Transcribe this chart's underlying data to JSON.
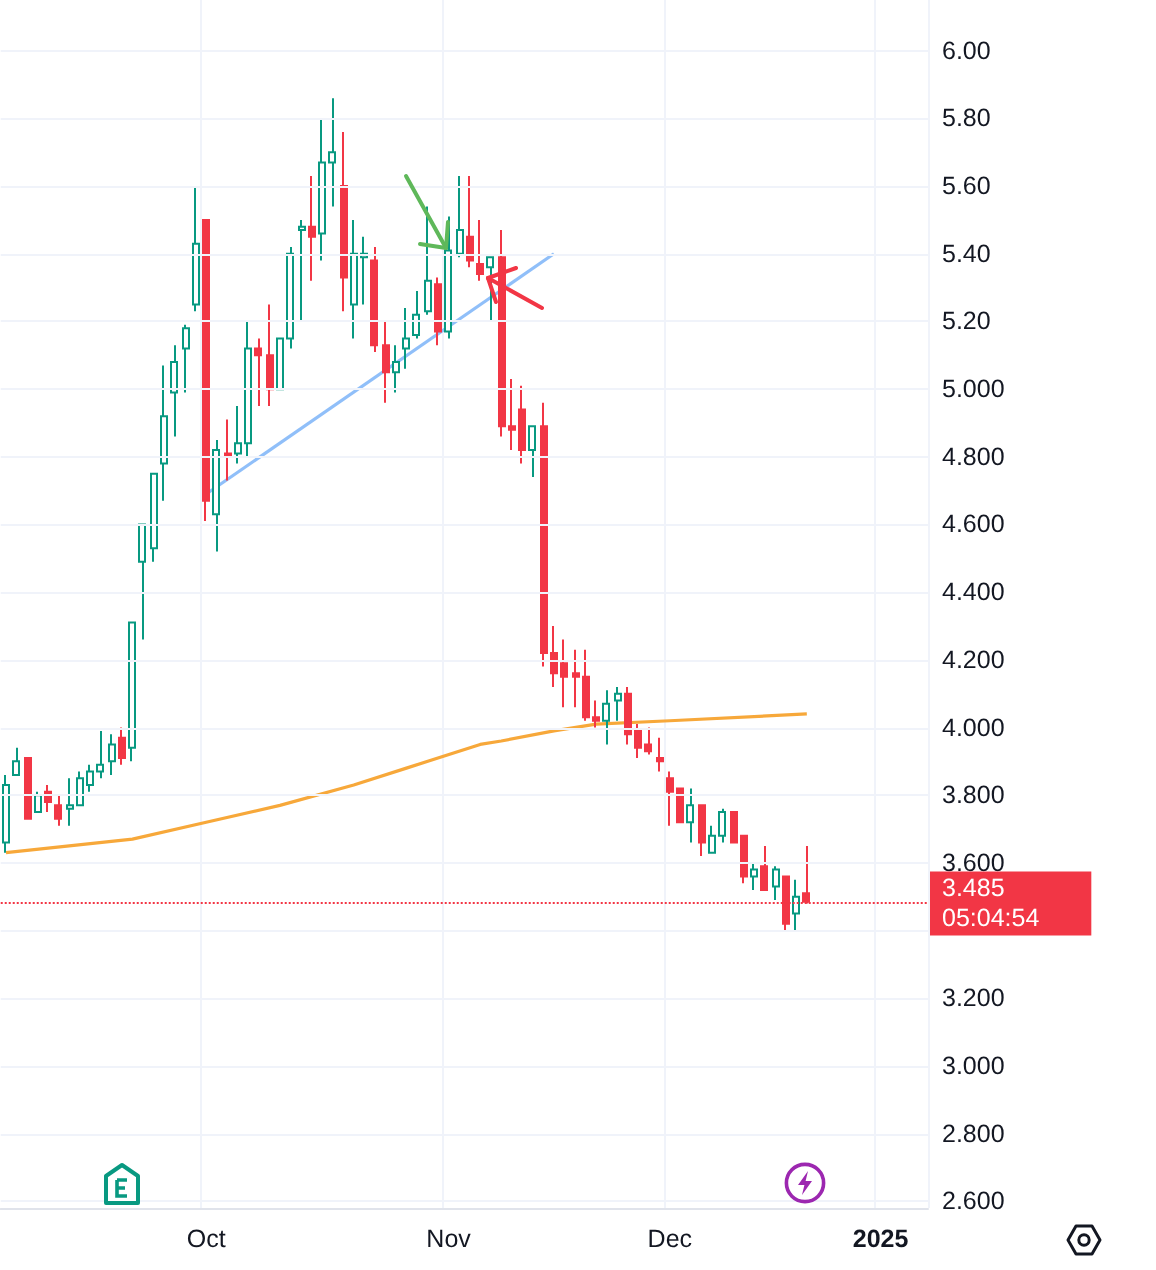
{
  "chart_data": {
    "type": "candlestick",
    "categories": [
      null,
      null,
      null,
      null,
      null,
      null,
      null,
      null,
      null,
      null,
      null,
      null,
      null,
      null,
      null,
      null,
      null,
      null,
      null,
      "Oct",
      null,
      null,
      null,
      null,
      null,
      null,
      null,
      null,
      null,
      null,
      null,
      null,
      null,
      null,
      null,
      null,
      null,
      null,
      null,
      null,
      null,
      null,
      "Nov",
      null,
      null,
      null,
      null,
      null,
      null,
      null,
      null,
      null,
      null,
      null,
      null,
      null,
      null,
      null,
      null,
      null,
      null,
      null,
      null,
      "Dec",
      null,
      null,
      null,
      null,
      null,
      null,
      null,
      null,
      null,
      null,
      null,
      null,
      null,
      null,
      null,
      null,
      null,
      null,
      null,
      "2025",
      null,
      null,
      null,
      null
    ],
    "ohlc": [
      [
        3.66,
        3.86,
        3.63,
        3.83
      ],
      [
        3.86,
        3.94,
        3.86,
        3.9
      ],
      [
        3.91,
        3.91,
        3.73,
        3.73
      ],
      [
        3.75,
        3.81,
        3.75,
        3.8
      ],
      [
        3.81,
        3.83,
        3.75,
        3.78
      ],
      [
        3.77,
        3.8,
        3.71,
        3.73
      ],
      [
        3.76,
        3.85,
        3.71,
        3.77
      ],
      [
        3.77,
        3.87,
        3.77,
        3.85
      ],
      [
        3.83,
        3.89,
        3.81,
        3.87
      ],
      [
        3.87,
        3.99,
        3.85,
        3.89
      ],
      [
        3.9,
        3.98,
        3.86,
        3.95
      ],
      [
        3.97,
        4.0,
        3.89,
        3.91
      ],
      [
        3.94,
        4.31,
        3.9,
        4.31
      ],
      [
        4.49,
        4.6,
        4.26,
        4.6
      ],
      [
        4.53,
        4.75,
        4.49,
        4.75
      ],
      [
        4.78,
        5.07,
        4.67,
        4.92
      ],
      [
        4.99,
        5.13,
        4.86,
        5.08
      ],
      [
        5.12,
        5.19,
        4.99,
        5.18
      ],
      [
        5.25,
        5.6,
        5.23,
        5.43
      ],
      [
        5.5,
        5.5,
        4.61,
        4.67
      ],
      [
        4.63,
        4.85,
        4.52,
        4.82
      ],
      [
        4.81,
        4.91,
        4.73,
        4.8
      ],
      [
        4.81,
        4.95,
        4.78,
        4.84
      ],
      [
        4.84,
        5.2,
        4.8,
        5.12
      ],
      [
        5.12,
        5.15,
        4.95,
        5.1
      ],
      [
        5.1,
        5.25,
        4.95,
        5.0
      ],
      [
        5.0,
        5.15,
        5.0,
        5.15
      ],
      [
        5.15,
        5.42,
        5.12,
        5.4
      ],
      [
        5.47,
        5.5,
        5.2,
        5.48
      ],
      [
        5.48,
        5.63,
        5.32,
        5.45
      ],
      [
        5.46,
        5.8,
        5.38,
        5.67
      ],
      [
        5.67,
        5.86,
        5.54,
        5.7
      ],
      [
        5.6,
        5.76,
        5.23,
        5.33
      ],
      [
        5.25,
        5.5,
        5.15,
        5.4
      ],
      [
        5.39,
        5.45,
        5.25,
        5.4
      ],
      [
        5.38,
        5.42,
        5.11,
        5.13
      ],
      [
        5.13,
        5.2,
        4.96,
        5.05
      ],
      [
        5.05,
        5.13,
        4.99,
        5.08
      ],
      [
        5.12,
        5.24,
        5.06,
        5.15
      ],
      [
        5.16,
        5.29,
        5.15,
        5.22
      ],
      [
        5.23,
        5.54,
        5.22,
        5.32
      ],
      [
        5.31,
        5.33,
        5.13,
        5.17
      ],
      [
        5.17,
        5.51,
        5.15,
        5.41
      ],
      [
        5.4,
        5.63,
        5.39,
        5.47
      ],
      [
        5.45,
        5.63,
        5.36,
        5.38
      ],
      [
        5.37,
        5.5,
        5.32,
        5.34
      ],
      [
        5.36,
        5.39,
        5.2,
        5.39
      ],
      [
        5.39,
        5.47,
        4.86,
        4.89
      ],
      [
        4.89,
        5.03,
        4.82,
        4.88
      ],
      [
        4.94,
        5.01,
        4.78,
        4.82
      ],
      [
        4.82,
        4.89,
        4.74,
        4.89
      ],
      [
        4.89,
        4.96,
        4.18,
        4.22
      ],
      [
        4.22,
        4.3,
        4.12,
        4.16
      ],
      [
        4.19,
        4.26,
        4.06,
        4.15
      ],
      [
        4.16,
        4.23,
        4.06,
        4.15
      ],
      [
        4.15,
        4.23,
        4.02,
        4.03
      ],
      [
        4.03,
        4.08,
        4.0,
        4.02
      ],
      [
        4.02,
        4.11,
        3.95,
        4.07
      ],
      [
        4.08,
        4.12,
        4.02,
        4.1
      ],
      [
        4.1,
        4.12,
        3.95,
        3.98
      ],
      [
        3.99,
        4.01,
        3.91,
        3.94
      ],
      [
        3.95,
        4.0,
        3.92,
        3.93
      ],
      [
        3.91,
        3.97,
        3.87,
        3.9
      ],
      [
        3.85,
        3.87,
        3.71,
        3.81
      ],
      [
        3.82,
        3.82,
        3.72,
        3.72
      ],
      [
        3.72,
        3.82,
        3.66,
        3.77
      ],
      [
        3.77,
        3.77,
        3.62,
        3.66
      ],
      [
        3.63,
        3.71,
        3.63,
        3.68
      ],
      [
        3.68,
        3.76,
        3.66,
        3.75
      ],
      [
        3.75,
        3.75,
        3.66,
        3.66
      ],
      [
        3.68,
        3.68,
        3.54,
        3.56
      ],
      [
        3.56,
        3.6,
        3.52,
        3.58
      ],
      [
        3.59,
        3.65,
        3.52,
        3.52
      ],
      [
        3.53,
        3.59,
        3.49,
        3.58
      ],
      [
        3.56,
        3.56,
        3.4,
        3.42
      ],
      [
        3.45,
        3.55,
        3.4,
        3.5
      ],
      [
        3.51,
        3.65,
        3.48,
        3.485
      ],
      null,
      null,
      null,
      null,
      null,
      null,
      null,
      null,
      null,
      null,
      null
    ],
    "series": [
      {
        "type": "line",
        "color": "#f7a83a",
        "values": [
          3.63,
          null,
          null,
          null,
          null,
          null,
          null,
          null,
          null,
          null,
          null,
          null,
          3.67,
          null,
          null,
          null,
          null,
          null,
          null,
          3.72,
          null,
          null,
          null,
          null,
          null,
          null,
          3.77,
          null,
          null,
          null,
          null,
          null,
          null,
          3.83,
          null,
          null,
          null,
          null,
          3.88,
          null,
          null,
          null,
          null,
          null,
          null,
          3.95,
          null,
          3.96,
          null,
          null,
          null,
          null,
          3.99,
          null,
          null,
          null,
          4.01,
          null,
          null,
          null,
          null,
          null,
          null,
          4.02,
          null,
          null,
          null,
          null,
          null,
          null,
          null,
          null,
          null,
          null,
          null,
          null,
          4.04,
          null,
          null,
          null,
          null,
          null,
          null,
          null,
          null,
          null,
          null,
          null
        ]
      },
      {
        "type": "line",
        "color": "#90bff9",
        "values": [
          null,
          null,
          null,
          null,
          null,
          null,
          null,
          null,
          null,
          null,
          null,
          null,
          null,
          null,
          null,
          null,
          null,
          null,
          null,
          4.69,
          null,
          null,
          null,
          null,
          null,
          null,
          null,
          null,
          null,
          null,
          null,
          null,
          null,
          null,
          null,
          null,
          null,
          null,
          null,
          null,
          null,
          null,
          null,
          null,
          null,
          null,
          null,
          null,
          null,
          null,
          null,
          null,
          5.4,
          null,
          null,
          null,
          null,
          null,
          null,
          null,
          null,
          null,
          null,
          null,
          null,
          null,
          null,
          null,
          null,
          null,
          null,
          null,
          null,
          null,
          null,
          null,
          null,
          null,
          null,
          null,
          null,
          null,
          null,
          null,
          null,
          null,
          null,
          null
        ]
      }
    ],
    "ylim": [
      2.58,
      6.15
    ],
    "yticks": [
      {
        "value": 2.6,
        "label": "2.600"
      },
      {
        "value": 2.8,
        "label": "2.800"
      },
      {
        "value": 3.0,
        "label": "3.000"
      },
      {
        "value": 3.2,
        "label": "3.200"
      },
      {
        "value": 3.4,
        "label": null
      },
      {
        "value": 3.6,
        "label": "3.600"
      },
      {
        "value": 3.8,
        "label": "3.800"
      },
      {
        "value": 4.0,
        "label": "4.000"
      },
      {
        "value": 4.2,
        "label": "4.200"
      },
      {
        "value": 4.4,
        "label": "4.400"
      },
      {
        "value": 4.6,
        "label": "4.600"
      },
      {
        "value": 4.8,
        "label": "4.800"
      },
      {
        "value": 5.0,
        "label": "5.000"
      },
      {
        "value": 5.2,
        "label": "5.20"
      },
      {
        "value": 5.4,
        "label": "5.40"
      },
      {
        "value": 5.6,
        "label": "5.60"
      },
      {
        "value": 5.8,
        "label": "5.80"
      },
      {
        "value": 6.0,
        "label": "6.00"
      }
    ],
    "ref_lines": [
      {
        "axis": "y",
        "value": 3.485,
        "label": "3.485",
        "color": "#f23645",
        "line_style": "dotted"
      }
    ],
    "annotations": [
      "05:04:54"
    ],
    "grid": true
  }
}
